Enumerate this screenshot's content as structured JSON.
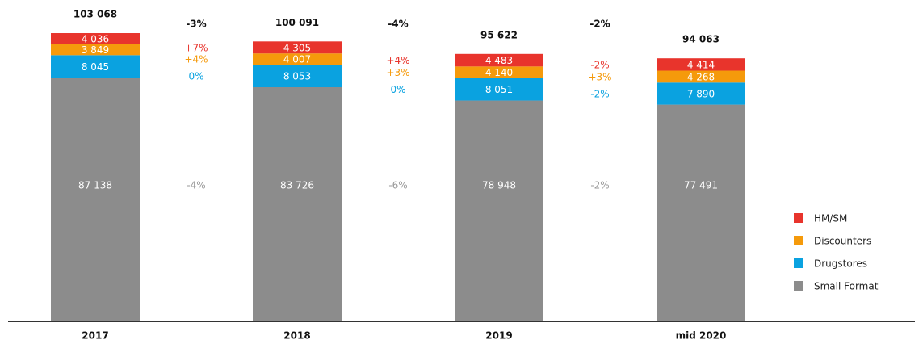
{
  "chart_data": {
    "type": "stacked_bar",
    "categories": [
      "2017",
      "2018",
      "2019",
      "mid 2020"
    ],
    "series": [
      {
        "name": "Small Format",
        "color": "#8c8c8c",
        "values": [
          87138,
          83726,
          78948,
          77491
        ],
        "value_labels": [
          "87 138",
          "83 726",
          "78 948",
          "77 491"
        ]
      },
      {
        "name": "Drugstores",
        "color": "#0aa2e0",
        "values": [
          8045,
          8053,
          8051,
          7890
        ],
        "value_labels": [
          "8 045",
          "8 053",
          "8 051",
          "7 890"
        ]
      },
      {
        "name": "Discounters",
        "color": "#f59a0b",
        "values": [
          3849,
          4007,
          4140,
          4268
        ],
        "value_labels": [
          "3 849",
          "4 007",
          "4 140",
          "4 268"
        ]
      },
      {
        "name": "HM/SM",
        "color": "#e8342c",
        "values": [
          4036,
          4305,
          4483,
          4414
        ],
        "value_labels": [
          "4 036",
          "4 305",
          "4 483",
          "4 414"
        ]
      }
    ],
    "totals": [
      103068,
      100091,
      95622,
      94063
    ],
    "total_labels": [
      "103 068",
      "100 091",
      "95 622",
      "94 063"
    ],
    "changes": [
      {
        "total": "-3%",
        "values": [
          "-4%",
          "0%",
          "+4%",
          "+7%"
        ]
      },
      {
        "total": "-4%",
        "values": [
          "-6%",
          "0%",
          "+3%",
          "+4%"
        ]
      },
      {
        "total": "-2%",
        "values": [
          "-2%",
          "-2%",
          "+3%",
          "-2%"
        ]
      }
    ],
    "ylim": [
      0,
      110000
    ],
    "legend": "right"
  }
}
